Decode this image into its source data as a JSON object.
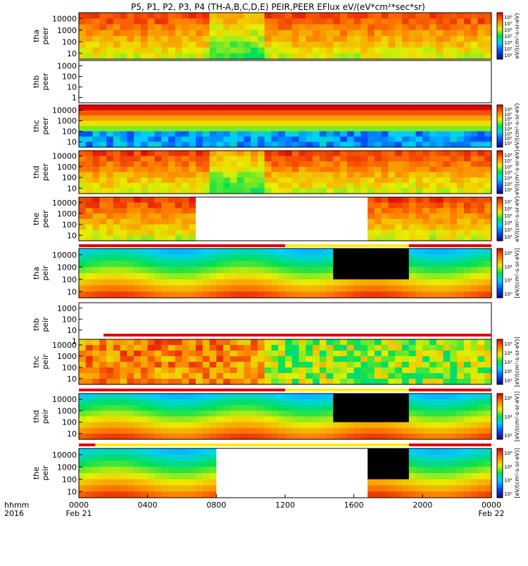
{
  "title": "P5, P1, P2, P3, P4 (TH-A,B,C,D,E) PEIR,PEER EFlux eV/(eV*cm²*sec*sr)",
  "chart_data": {
    "type": "heatmap",
    "date_labels": {
      "start": "Feb 21",
      "end": "Feb 22"
    },
    "year_label": "2016",
    "time_row_label": "hhmm",
    "x_ticks": [
      "0000",
      "0400",
      "0800",
      "1200",
      "1600",
      "2000",
      "0000"
    ],
    "y_ticks": [
      "10",
      "100",
      "1000",
      "10000"
    ],
    "electron_cbar_label": "eV/(cm²-s-sr-eV)",
    "ion_cbar_label": "[eV/(cm²-s-sr-eV)]",
    "panels": [
      {
        "label_top": "tha",
        "label_bottom": "peer",
        "style": "full",
        "cbar": [
          "10⁸",
          "10⁷",
          "10⁶",
          "10⁵",
          "10⁴",
          "10³",
          "10²"
        ]
      },
      {
        "label_top": "thb",
        "label_bottom": "peer",
        "style": "empty",
        "y_ticks": [
          "1",
          "10",
          "100",
          "1000"
        ]
      },
      {
        "label_top": "thc",
        "label_bottom": "peer",
        "style": "blue",
        "cbar": [
          "10⁸",
          "10⁷",
          "10⁶",
          "10⁵",
          "10⁴",
          "10³",
          "10²",
          "10¹"
        ]
      },
      {
        "label_top": "thd",
        "label_bottom": "peer",
        "style": "full",
        "cbar": [
          "10⁸",
          "10⁷",
          "10⁶",
          "10⁵",
          "10⁴",
          "10³",
          "10²"
        ]
      },
      {
        "label_top": "the",
        "label_bottom": "peer",
        "style": "gap",
        "cbar": [
          "10⁷",
          "10⁶",
          "10⁵",
          "10⁴",
          "10³",
          "10²"
        ]
      },
      {
        "label_top": "tha",
        "label_bottom": "peir",
        "style": "ion",
        "cbar": [
          "10⁶",
          "10⁴",
          "10²",
          "10⁰"
        ]
      },
      {
        "label_top": "thb",
        "label_bottom": "peir",
        "style": "empty",
        "y_ticks": [
          "1",
          "10",
          "100",
          "1000"
        ]
      },
      {
        "label_top": "thc",
        "label_bottom": "peir",
        "style": "ionhot",
        "cbar": [
          "10⁵",
          "10⁴",
          "10³",
          "10²",
          "10¹"
        ]
      },
      {
        "label_top": "thd",
        "label_bottom": "peir",
        "style": "ion",
        "cbar": [
          "10⁶",
          "10⁴",
          "10²"
        ]
      },
      {
        "label_top": "the",
        "label_bottom": "peir",
        "style": "iongap",
        "cbar": [
          "10⁶",
          "10⁴",
          "10²",
          "10⁰"
        ]
      }
    ]
  }
}
